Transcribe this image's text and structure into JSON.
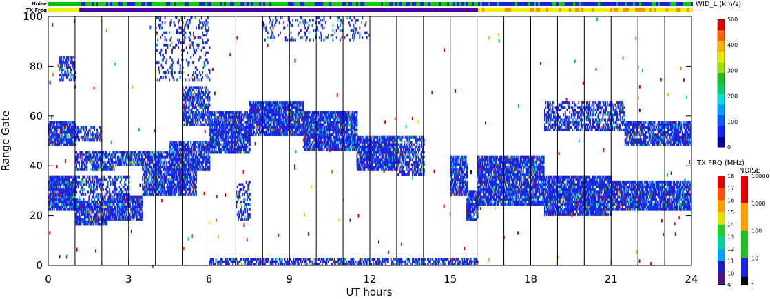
{
  "chart_data": {
    "type": "heatmap",
    "xlabel": "UT hours",
    "ylabel": "Range Gate",
    "xlim": [
      0,
      24
    ],
    "ylim": [
      0,
      100
    ],
    "x_ticks": [
      "0",
      "3",
      "6",
      "9",
      "12",
      "15",
      "18",
      "21",
      "24"
    ],
    "y_ticks": [
      "0",
      "20",
      "40",
      "60",
      "80",
      "100"
    ],
    "hour_lines": [
      1,
      2,
      3,
      4,
      5,
      6,
      7,
      8,
      9,
      10,
      11,
      12,
      13,
      14,
      15,
      16,
      17,
      18,
      19,
      20,
      21,
      22,
      23
    ],
    "top_strips": {
      "noise_label": "Noise",
      "txfreq_label": "TX Freq"
    },
    "velocity_colorbar": {
      "title": "WID_L (km/s)",
      "ticks": [
        "0",
        "100",
        "200",
        "300",
        "400",
        "500"
      ],
      "range": [
        0,
        500
      ]
    },
    "txfreq_colorbar": {
      "title": "TX FRQ (MHz)",
      "ticks": [
        "9",
        "10",
        "11",
        "12",
        "13",
        "14",
        "15",
        "16",
        "17",
        "18"
      ]
    },
    "noise_colorbar": {
      "title": "NOISE",
      "ticks": [
        "1",
        "10",
        "100",
        "1000",
        "10000"
      ]
    },
    "bands": [
      {
        "t0": 0.0,
        "t1": 1.0,
        "g0": 48,
        "g1": 58,
        "density": 0.8
      },
      {
        "t0": 0.0,
        "t1": 1.0,
        "g0": 22,
        "g1": 36,
        "density": 0.85
      },
      {
        "t0": 0.4,
        "t1": 1.0,
        "g0": 74,
        "g1": 84,
        "density": 0.5
      },
      {
        "t0": 1.0,
        "t1": 2.2,
        "g0": 16,
        "g1": 26,
        "density": 0.85
      },
      {
        "t0": 1.0,
        "t1": 2.5,
        "g0": 38,
        "g1": 46,
        "density": 0.7
      },
      {
        "t0": 1.0,
        "t1": 2.0,
        "g0": 50,
        "g1": 56,
        "density": 0.5
      },
      {
        "t0": 1.0,
        "t1": 3.0,
        "g0": 26,
        "g1": 36,
        "density": 0.4
      },
      {
        "t0": 2.2,
        "t1": 3.5,
        "g0": 18,
        "g1": 28,
        "density": 0.8
      },
      {
        "t0": 2.5,
        "t1": 4.5,
        "g0": 40,
        "g1": 46,
        "density": 0.7
      },
      {
        "t0": 3.5,
        "t1": 5.5,
        "g0": 28,
        "g1": 40,
        "density": 0.75
      },
      {
        "t0": 4.5,
        "t1": 6.0,
        "g0": 38,
        "g1": 50,
        "density": 0.8
      },
      {
        "t0": 5.0,
        "t1": 6.0,
        "g0": 56,
        "g1": 72,
        "density": 0.6
      },
      {
        "t0": 6.0,
        "t1": 7.5,
        "g0": 45,
        "g1": 62,
        "density": 0.85
      },
      {
        "t0": 7.5,
        "t1": 9.5,
        "g0": 52,
        "g1": 66,
        "density": 0.85
      },
      {
        "t0": 9.5,
        "t1": 11.5,
        "g0": 46,
        "g1": 62,
        "density": 0.85
      },
      {
        "t0": 11.5,
        "t1": 13.0,
        "g0": 38,
        "g1": 52,
        "density": 0.85
      },
      {
        "t0": 13.0,
        "t1": 14.0,
        "g0": 36,
        "g1": 52,
        "density": 0.55
      },
      {
        "t0": 15.0,
        "t1": 15.6,
        "g0": 28,
        "g1": 44,
        "density": 0.8
      },
      {
        "t0": 15.6,
        "t1": 16.0,
        "g0": 18,
        "g1": 30,
        "density": 0.8
      },
      {
        "t0": 16.0,
        "t1": 18.5,
        "g0": 24,
        "g1": 44,
        "density": 0.85
      },
      {
        "t0": 18.5,
        "t1": 21.0,
        "g0": 20,
        "g1": 36,
        "density": 0.85
      },
      {
        "t0": 21.0,
        "t1": 24.0,
        "g0": 22,
        "g1": 34,
        "density": 0.85
      },
      {
        "t0": 18.5,
        "t1": 21.5,
        "g0": 54,
        "g1": 66,
        "density": 0.5
      },
      {
        "t0": 21.5,
        "t1": 24.0,
        "g0": 48,
        "g1": 58,
        "density": 0.75
      },
      {
        "t0": 6.0,
        "t1": 16.0,
        "g0": 0,
        "g1": 3,
        "density": 0.6
      },
      {
        "t0": 8.0,
        "t1": 12.0,
        "g0": 90,
        "g1": 100,
        "density": 0.15
      },
      {
        "t0": 4.0,
        "t1": 6.0,
        "g0": 74,
        "g1": 100,
        "density": 0.18
      },
      {
        "t0": 7.0,
        "t1": 7.5,
        "g0": 18,
        "g1": 34,
        "density": 0.4
      }
    ]
  }
}
